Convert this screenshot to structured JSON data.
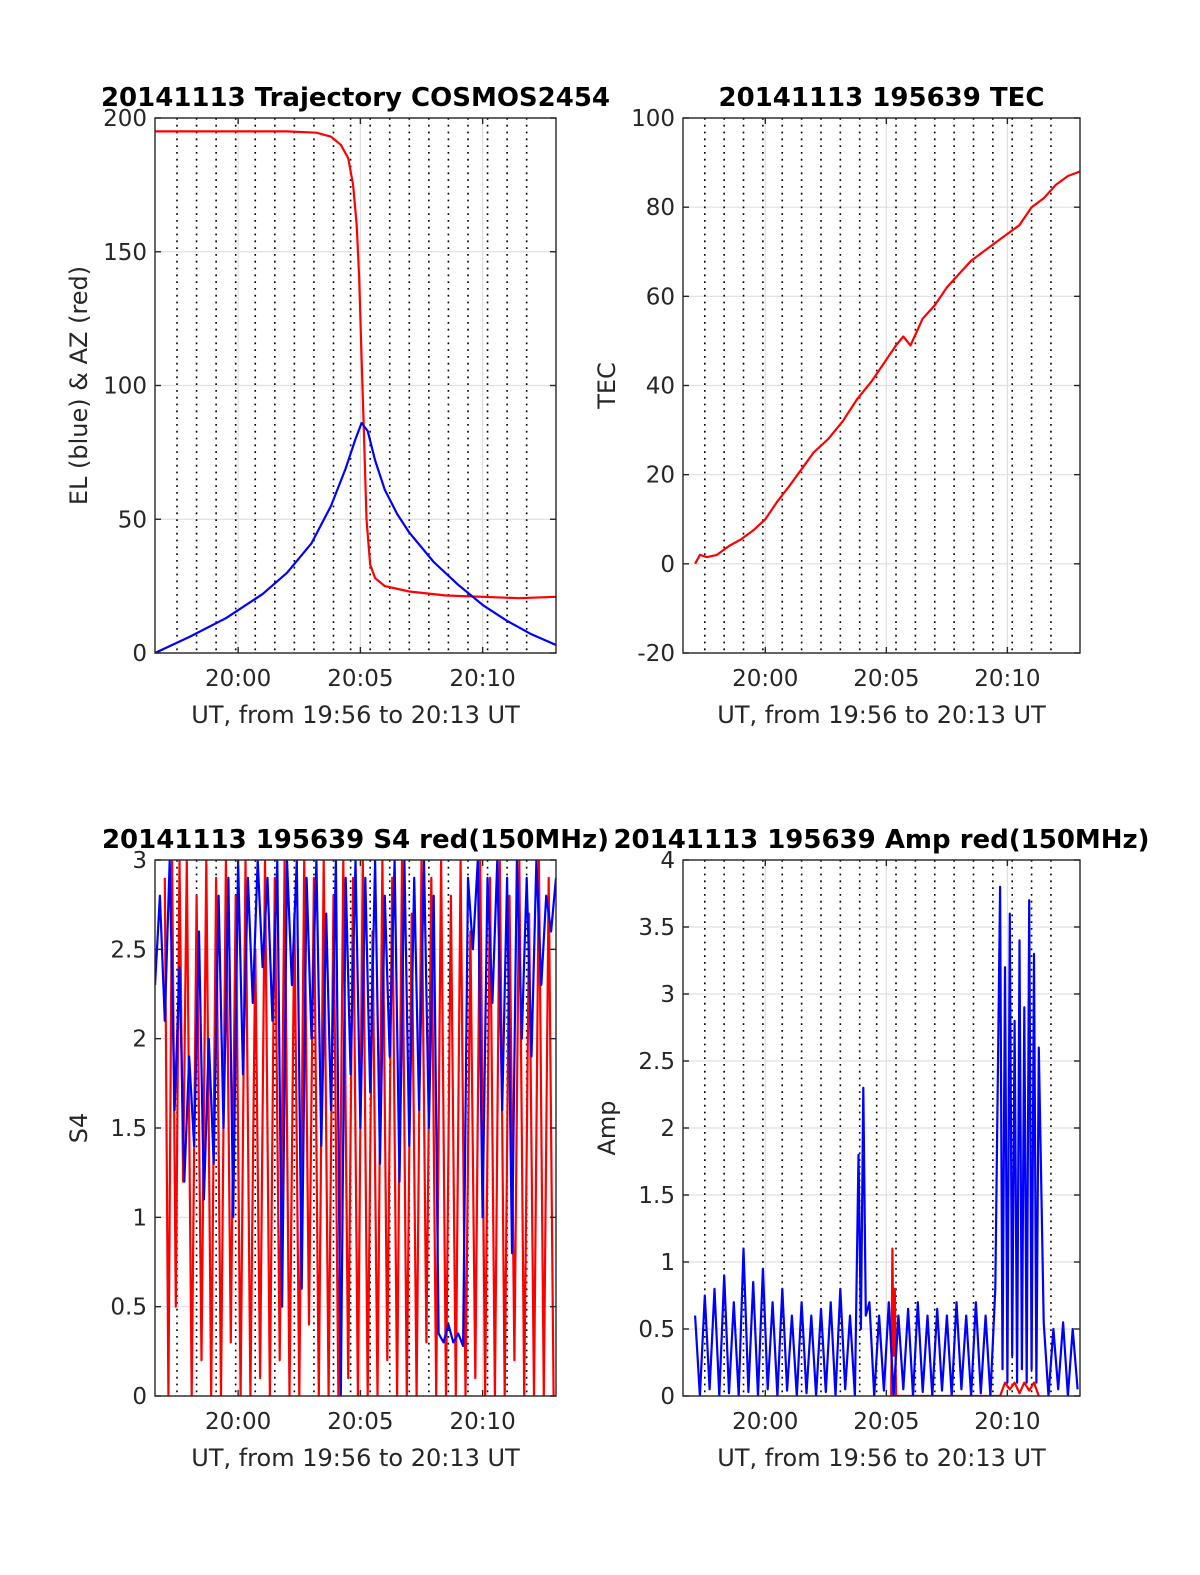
{
  "figure_title": "",
  "chart_data": [
    {
      "id": "trajectory",
      "type": "line",
      "title": "20141113 Trajectory COSMOS2454",
      "xlabel": "UT, from 19:56 to 20:13 UT",
      "ylabel": "EL (blue) & AZ (red)",
      "x_unit": "minutes since 19:56 UT",
      "xlim": [
        0.6,
        17.0
      ],
      "ylim": [
        0,
        200
      ],
      "xticks": [
        4,
        9,
        14
      ],
      "xtick_labels": [
        "20:00",
        "20:05",
        "20:10"
      ],
      "yticks": [
        0,
        50,
        100,
        150,
        200
      ],
      "ytick_labels": [
        "0",
        "50",
        "100",
        "150",
        "200"
      ],
      "grid": true,
      "dotted_time_markers": [
        1.5,
        2.3,
        3.1,
        3.9,
        4.7,
        5.5,
        6.3,
        7.1,
        7.9,
        8.6,
        9.4,
        10.2,
        11.0,
        11.8,
        12.6,
        13.4,
        14.2,
        15.0,
        15.8
      ],
      "series": [
        {
          "color": "#ff0000",
          "x": [
            0.6,
            3.0,
            6.0,
            7.2,
            7.8,
            8.2,
            8.5,
            8.7,
            8.85,
            8.95,
            9.05,
            9.15,
            9.25,
            9.4,
            9.6,
            10.0,
            11.0,
            12.5,
            14.0,
            15.5,
            17.0
          ],
          "y": [
            195,
            195,
            195,
            194.5,
            193,
            190,
            185,
            175,
            160,
            140,
            110,
            80,
            50,
            33,
            28,
            25,
            23,
            21.5,
            21,
            20.5,
            21
          ]
        },
        {
          "color": "#0000ff",
          "x": [
            0.6,
            2.0,
            3.5,
            5.0,
            6.0,
            7.0,
            7.8,
            8.4,
            8.8,
            9.05,
            9.3,
            9.6,
            10.0,
            10.5,
            11.0,
            12.0,
            13.0,
            14.0,
            15.0,
            16.0,
            17.0
          ],
          "y": [
            0,
            6,
            13,
            22,
            30,
            41,
            55,
            69,
            80,
            86,
            83,
            72,
            61,
            52,
            45,
            34,
            25.5,
            18,
            12,
            7,
            3
          ]
        }
      ]
    },
    {
      "id": "tec",
      "type": "line",
      "title": "20141113 195639 TEC",
      "xlabel": "UT, from 19:56 to 20:13 UT",
      "ylabel": "TEC",
      "x_unit": "minutes since 19:56 UT",
      "xlim": [
        0.6,
        17.0
      ],
      "ylim": [
        -20,
        100
      ],
      "xticks": [
        4,
        9,
        14
      ],
      "xtick_labels": [
        "20:00",
        "20:05",
        "20:10"
      ],
      "yticks": [
        -20,
        0,
        20,
        40,
        60,
        80,
        100
      ],
      "ytick_labels": [
        "-20",
        "0",
        "20",
        "40",
        "60",
        "80",
        "100"
      ],
      "grid": true,
      "dotted_time_markers": [
        1.5,
        2.3,
        3.1,
        3.9,
        4.7,
        5.5,
        6.3,
        7.1,
        7.9,
        8.6,
        9.4,
        10.2,
        11.0,
        11.8,
        12.6,
        13.4,
        14.2,
        15.0,
        15.8
      ],
      "series": [
        {
          "color": "#ff0000",
          "x": [
            1.1,
            1.3,
            1.6,
            2.0,
            2.5,
            3.0,
            3.5,
            4.0,
            4.5,
            5.0,
            5.6,
            6.0,
            6.6,
            7.2,
            7.8,
            8.4,
            8.9,
            9.4,
            9.7,
            10.0,
            10.5,
            11.0,
            11.5,
            12.0,
            12.5,
            13.0,
            13.5,
            14.0,
            14.5,
            15.0,
            15.5,
            16.0,
            16.5,
            17.0
          ],
          "y": [
            0,
            2,
            1.5,
            2,
            4,
            5.5,
            7.5,
            10,
            14,
            17.5,
            22,
            25,
            28,
            32,
            37,
            41,
            45,
            49,
            51,
            49,
            55,
            58,
            62,
            65,
            68,
            70,
            72,
            74,
            76,
            80,
            82,
            85,
            87,
            88
          ]
        }
      ]
    },
    {
      "id": "s4",
      "type": "line",
      "title": "20141113 195639 S4 red(150MHz)",
      "xlabel": "UT, from 19:56 to 20:13 UT",
      "ylabel": "S4",
      "x_unit": "minutes since 19:56 UT",
      "xlim": [
        0.6,
        17.0
      ],
      "ylim": [
        0,
        3
      ],
      "xticks": [
        4,
        9,
        14
      ],
      "xtick_labels": [
        "20:00",
        "20:05",
        "20:10"
      ],
      "yticks": [
        0,
        0.5,
        1,
        1.5,
        2,
        2.5,
        3
      ],
      "ytick_labels": [
        "0",
        "0.5",
        "1",
        "1.5",
        "2",
        "2.5",
        "3"
      ],
      "grid": true,
      "dotted_time_markers": [
        1.5,
        2.3,
        3.1,
        3.9,
        4.7,
        5.5,
        6.3,
        7.1,
        7.9,
        8.6,
        9.4,
        10.2,
        11.0,
        11.8,
        12.6,
        13.4,
        14.2,
        15.0,
        15.8
      ],
      "series": [
        {
          "color": "#ff0000",
          "x": [
            1.0,
            1.15,
            1.3,
            1.45,
            1.6,
            1.75,
            1.9,
            2.1,
            2.3,
            2.5,
            2.7,
            2.9,
            3.1,
            3.3,
            3.5,
            3.7,
            3.9,
            4.1,
            4.3,
            4.5,
            4.7,
            4.9,
            5.1,
            5.3,
            5.5,
            5.7,
            5.9,
            6.1,
            6.3,
            6.5,
            6.7,
            6.9,
            7.1,
            7.3,
            7.5,
            7.7,
            7.9,
            8.1,
            8.3,
            8.5,
            8.7,
            8.9,
            9.1,
            9.3,
            9.5,
            9.7,
            9.9,
            10.1,
            10.3,
            10.5,
            10.7,
            10.9,
            11.1,
            11.3,
            11.5,
            11.7,
            11.9,
            12.1,
            12.3,
            12.5,
            12.7,
            12.9,
            13.1,
            13.3,
            13.5,
            13.7,
            13.9,
            14.1,
            14.3,
            14.5,
            14.7,
            14.9,
            15.1,
            15.3,
            15.5,
            15.7,
            15.9,
            16.1,
            16.3,
            16.5,
            16.7,
            16.9
          ],
          "y": [
            2.9,
            0,
            3,
            0.5,
            3,
            1.2,
            3,
            0,
            2.8,
            0.2,
            3,
            0,
            2.9,
            0,
            3,
            0.3,
            2.8,
            0,
            3,
            0,
            2.5,
            0.1,
            3,
            0,
            2.9,
            0.2,
            3,
            0,
            2.7,
            0,
            3,
            0.4,
            2.9,
            0,
            3,
            0,
            2.8,
            0,
            3,
            0.1,
            2.9,
            0,
            3,
            0,
            2.6,
            0,
            3,
            0.2,
            2.9,
            0,
            3,
            0,
            2.7,
            0,
            3,
            0.3,
            2.9,
            0,
            3,
            0,
            2.8,
            0,
            3,
            0,
            2.6,
            0.1,
            3,
            0,
            2.9,
            0,
            3,
            0,
            2.8,
            0.2,
            3,
            0,
            2.7,
            0,
            3,
            0,
            2.9,
            0
          ]
        },
        {
          "color": "#0000ff",
          "x": [
            0.6,
            0.8,
            1.0,
            1.2,
            1.4,
            1.6,
            1.8,
            2.0,
            2.2,
            2.4,
            2.6,
            2.8,
            3.0,
            3.2,
            3.4,
            3.6,
            3.8,
            4.0,
            4.2,
            4.4,
            4.6,
            4.8,
            5.0,
            5.2,
            5.4,
            5.6,
            5.8,
            6.0,
            6.2,
            6.4,
            6.6,
            6.8,
            7.0,
            7.2,
            7.4,
            7.6,
            7.8,
            8.0,
            8.2,
            8.4,
            8.6,
            8.8,
            9.0,
            9.2,
            9.4,
            9.6,
            9.8,
            10.0,
            10.2,
            10.4,
            10.6,
            10.8,
            11.0,
            11.2,
            11.4,
            11.6,
            11.8,
            12.0,
            12.2,
            12.4,
            12.6,
            12.8,
            13.0,
            13.2,
            13.4,
            13.6,
            13.8,
            14.0,
            14.2,
            14.4,
            14.6,
            14.8,
            15.0,
            15.2,
            15.4,
            15.6,
            15.8,
            16.0,
            16.2,
            16.4,
            16.6,
            16.8,
            17.0
          ],
          "y": [
            2.3,
            2.8,
            2.1,
            3.0,
            1.6,
            2.4,
            1.2,
            1.9,
            1.4,
            2.6,
            1.1,
            2.0,
            1.3,
            2.8,
            1.5,
            2.9,
            1.0,
            3.0,
            1.8,
            2.9,
            2.2,
            3.0,
            2.4,
            2.9,
            2.1,
            3.0,
            0.5,
            3.0,
            2.3,
            3.0,
            0.6,
            2.9,
            2.0,
            3.0,
            1.4,
            2.7,
            1.6,
            3.0,
            0,
            2.9,
            1.8,
            3.0,
            1.5,
            2.9,
            1.7,
            3.0,
            1.3,
            2.8,
            1.9,
            3.0,
            1.2,
            3.0,
            1.4,
            2.9,
            1.6,
            3.0,
            1.5,
            2.8,
            0.35,
            0.3,
            0.4,
            0.3,
            0.35,
            0.28,
            2.9,
            2.5,
            3.0,
            1.0,
            2.9,
            2.2,
            3.0,
            1.6,
            2.9,
            0.8,
            3.0,
            2.0,
            2.9,
            1.9,
            3.0,
            2.3,
            2.8,
            2.6,
            2.9
          ]
        }
      ]
    },
    {
      "id": "amp",
      "type": "line",
      "title": "20141113 195639 Amp red(150MHz)",
      "xlabel": "UT, from 19:56 to 20:13 UT",
      "ylabel": "Amp",
      "x_unit": "minutes since 19:56 UT",
      "xlim": [
        0.6,
        17.0
      ],
      "ylim": [
        0,
        4
      ],
      "xticks": [
        4,
        9,
        14
      ],
      "xtick_labels": [
        "20:00",
        "20:05",
        "20:10"
      ],
      "yticks": [
        0,
        0.5,
        1,
        1.5,
        2,
        2.5,
        3,
        3.5,
        4
      ],
      "ytick_labels": [
        "0",
        "0.5",
        "1",
        "1.5",
        "2",
        "2.5",
        "3",
        "3.5",
        "4"
      ],
      "grid": true,
      "dotted_time_markers": [
        1.5,
        2.3,
        3.1,
        3.9,
        4.7,
        5.5,
        6.3,
        7.1,
        7.9,
        8.6,
        9.4,
        10.2,
        11.0,
        11.8,
        12.6,
        13.4,
        14.2,
        15.0,
        15.8
      ],
      "series": [
        {
          "color": "#ff0000",
          "x": [
            9.2,
            9.25,
            9.3,
            9.35,
            9.4,
            13.7,
            13.9,
            14.1,
            14.3,
            14.5,
            14.7,
            14.9,
            15.1,
            15.3
          ],
          "y": [
            0,
            1.1,
            0.3,
            0.8,
            0,
            0,
            0.1,
            0.05,
            0.1,
            0.02,
            0.1,
            0.04,
            0.1,
            0
          ]
        },
        {
          "color": "#0000ff",
          "x": [
            1.1,
            1.3,
            1.5,
            1.7,
            1.9,
            2.1,
            2.3,
            2.5,
            2.7,
            2.9,
            3.1,
            3.3,
            3.5,
            3.7,
            3.9,
            4.1,
            4.3,
            4.5,
            4.7,
            4.9,
            5.1,
            5.3,
            5.5,
            5.7,
            5.9,
            6.1,
            6.3,
            6.5,
            6.7,
            6.9,
            7.1,
            7.3,
            7.5,
            7.7,
            7.85,
            7.95,
            8.05,
            8.15,
            8.3,
            8.5,
            8.7,
            8.9,
            9.1,
            9.3,
            9.5,
            9.7,
            9.9,
            10.1,
            10.3,
            10.5,
            10.7,
            10.9,
            11.1,
            11.3,
            11.5,
            11.7,
            11.9,
            12.1,
            12.3,
            12.5,
            12.7,
            12.9,
            13.1,
            13.3,
            13.5,
            13.7,
            13.8,
            13.9,
            14.0,
            14.1,
            14.2,
            14.3,
            14.4,
            14.5,
            14.6,
            14.7,
            14.8,
            14.9,
            15.0,
            15.1,
            15.2,
            15.3,
            15.5,
            15.7,
            15.9,
            16.1,
            16.3,
            16.5,
            16.7,
            16.9
          ],
          "y": [
            0.6,
            0,
            0.75,
            0.05,
            0.8,
            0,
            0.9,
            0.02,
            0.7,
            0,
            1.1,
            0.03,
            0.85,
            0,
            0.95,
            0.05,
            0.7,
            0,
            0.8,
            0.04,
            0.6,
            0,
            0.7,
            0.02,
            0.6,
            0,
            0.65,
            0.03,
            0.7,
            0,
            0.8,
            0.05,
            0.6,
            0,
            1.8,
            0.5,
            2.3,
            0.6,
            0.7,
            0,
            0.6,
            0.04,
            0.7,
            0,
            0.6,
            0.05,
            0.65,
            0,
            0.7,
            0.03,
            0.6,
            0,
            0.65,
            0.04,
            0.6,
            0,
            0.7,
            0.05,
            0.6,
            0,
            0.7,
            0.02,
            0.6,
            0,
            0.8,
            3.8,
            0.2,
            3.2,
            0.1,
            3.6,
            0.3,
            2.8,
            0.1,
            3.4,
            0.2,
            2.9,
            0.1,
            3.7,
            0.2,
            3.3,
            0.1,
            2.6,
            0.55,
            0,
            0.5,
            0.05,
            0.55,
            0,
            0.5,
            0.05
          ]
        }
      ]
    }
  ]
}
